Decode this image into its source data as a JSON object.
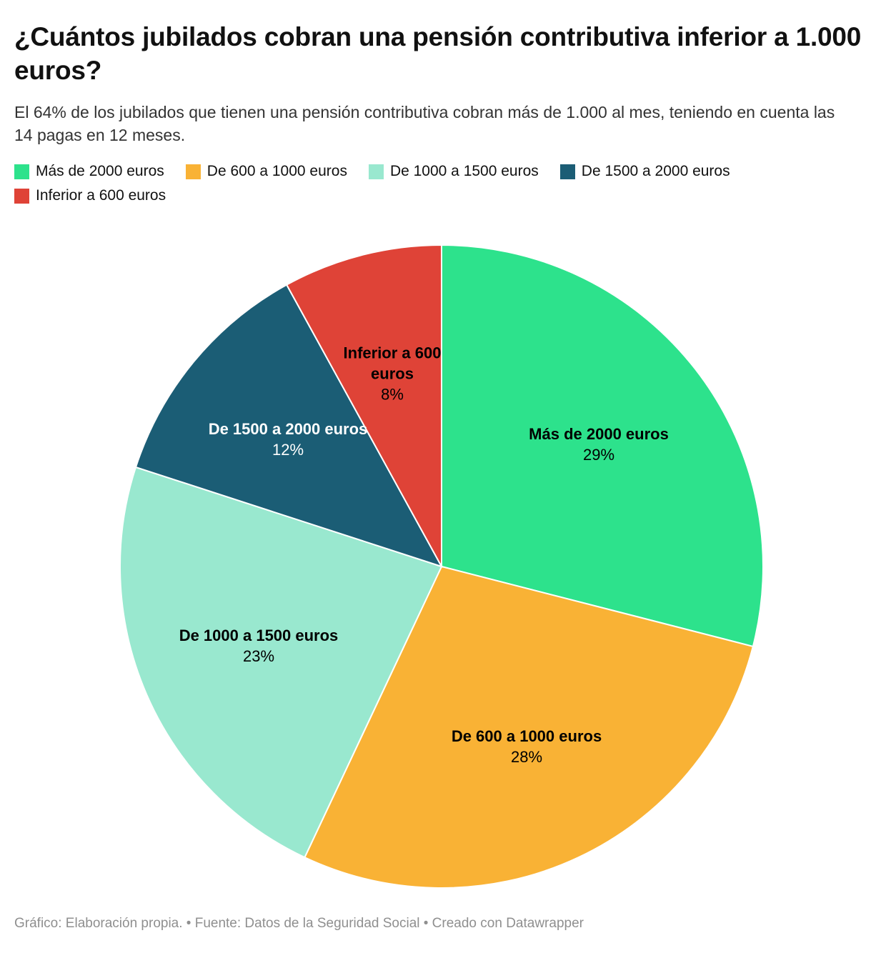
{
  "header": {
    "title": "¿Cuántos jubilados cobran una pensión contributiva inferior a 1.000 euros?",
    "subtitle": "El 64% de los jubilados que tienen una pensión contributiva cobran más de 1.000 al mes, teniendo en cuenta las 14 pagas en 12 meses."
  },
  "legend": {
    "position": "top",
    "items": [
      {
        "label": "Más de 2000 euros",
        "color": "#2de28c"
      },
      {
        "label": "De 600 a 1000 euros",
        "color": "#f9b235"
      },
      {
        "label": "De 1000 a 1500 euros",
        "color": "#99e8cf"
      },
      {
        "label": "De 1500 a 2000 euros",
        "color": "#1b5d75"
      },
      {
        "label": "Inferior a 600 euros",
        "color": "#df4337"
      }
    ]
  },
  "chart_data": {
    "type": "pie",
    "title": "¿Cuántos jubilados cobran una pensión contributiva inferior a 1.000 euros?",
    "total": 100,
    "start_angle_deg": 0,
    "direction": "clockwise",
    "legend_position": "top",
    "labels_inside": true,
    "slices": [
      {
        "label": "Más de 2000 euros",
        "value": 29,
        "value_label": "29%",
        "color": "#2de28c",
        "text_color": "#000000"
      },
      {
        "label": "De 600 a 1000 euros",
        "value": 28,
        "value_label": "28%",
        "color": "#f9b235",
        "text_color": "#000000"
      },
      {
        "label": "De 1000 a 1500 euros",
        "value": 23,
        "value_label": "23%",
        "color": "#99e8cf",
        "text_color": "#000000"
      },
      {
        "label": "De 1500 a 2000 euros",
        "value": 12,
        "value_label": "12%",
        "color": "#1b5d75",
        "text_color": "#ffffff"
      },
      {
        "label": "Inferior a 600 euros",
        "value": 8,
        "value_label": "8%",
        "color": "#df4337",
        "text_color": "#000000"
      }
    ]
  },
  "footer": {
    "text": "Gráfico: Elaboración propia. • Fuente: Datos de la Seguridad Social • Creado con Datawrapper"
  }
}
